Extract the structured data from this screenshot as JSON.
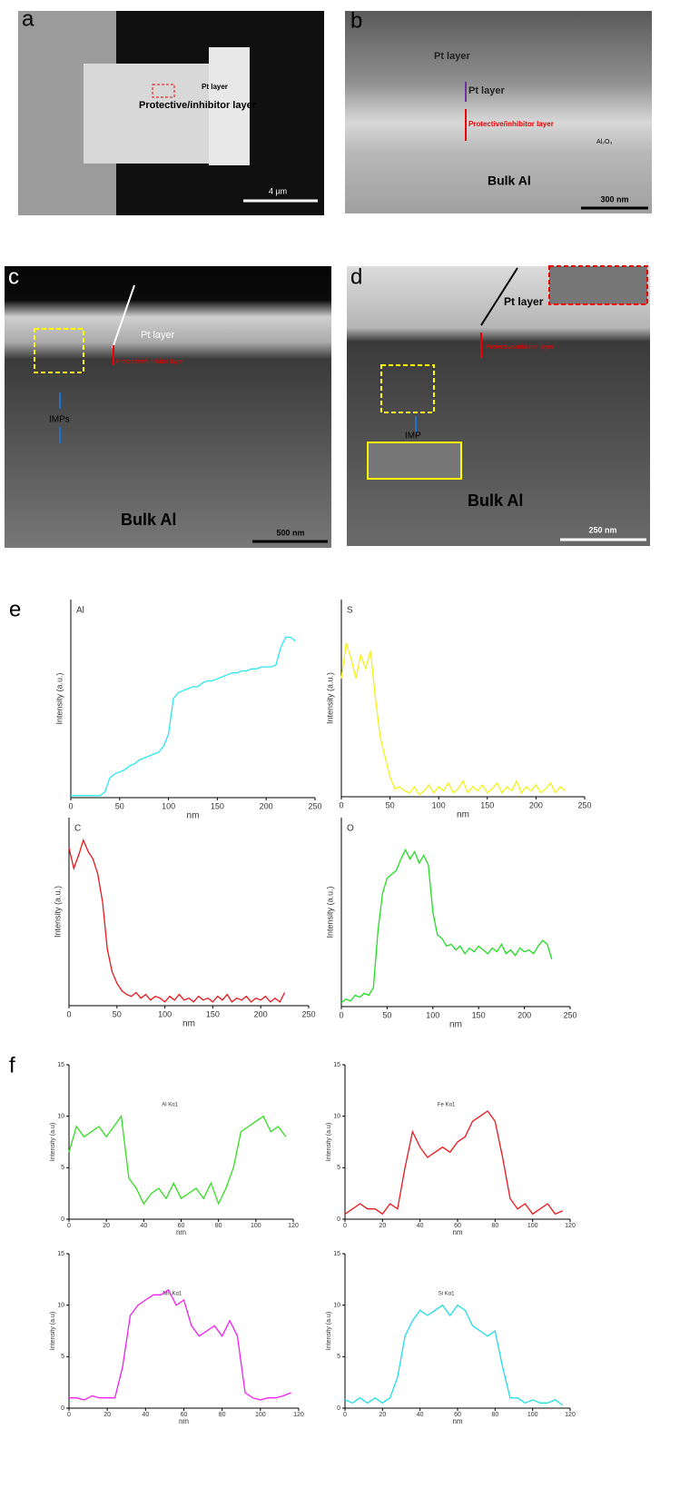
{
  "panels": [
    {
      "label": "a",
      "texts": [
        "Pt layer",
        "Protective/inhibitor layer",
        "4 µm"
      ]
    },
    {
      "label": "b",
      "texts": [
        "Pt layer",
        "Pt layer",
        "Protective/inhibitor layer",
        "Al₂O₃",
        "Bulk Al",
        "300 nm"
      ]
    },
    {
      "label": "c",
      "texts": [
        "Pt layer",
        "Protective/inhibitor layer",
        "IMPs",
        "Bulk Al",
        "500 nm"
      ]
    },
    {
      "label": "d",
      "texts": [
        "Pt layer",
        "Protective/inhibitor layer",
        "IMP",
        "Bulk Al",
        "250 nm"
      ]
    }
  ],
  "figure_labels": [
    "e",
    "f"
  ],
  "chart_data": [
    {
      "type": "line",
      "title": "Al",
      "xlabel": "nm",
      "ylabel": "Intensity (a.u.)",
      "color": "#2ee6f0",
      "x": [
        0,
        5,
        10,
        15,
        20,
        25,
        30,
        35,
        40,
        45,
        50,
        55,
        60,
        65,
        70,
        75,
        80,
        85,
        90,
        95,
        100,
        105,
        110,
        115,
        120,
        125,
        130,
        135,
        140,
        145,
        150,
        155,
        160,
        165,
        170,
        175,
        180,
        185,
        190,
        195,
        200,
        205,
        210,
        215,
        220,
        225,
        230
      ],
      "values": [
        0.01,
        0.01,
        0.01,
        0.01,
        0.01,
        0.01,
        0.01,
        0.03,
        0.1,
        0.12,
        0.13,
        0.14,
        0.16,
        0.17,
        0.19,
        0.2,
        0.21,
        0.22,
        0.23,
        0.26,
        0.32,
        0.5,
        0.53,
        0.54,
        0.55,
        0.56,
        0.56,
        0.58,
        0.59,
        0.59,
        0.6,
        0.61,
        0.62,
        0.63,
        0.63,
        0.64,
        0.64,
        0.65,
        0.65,
        0.66,
        0.66,
        0.66,
        0.67,
        0.76,
        0.81,
        0.81,
        0.79
      ],
      "xlim": [
        0,
        250
      ],
      "ylim": [
        0,
        1
      ],
      "xticks": [
        0,
        50,
        100,
        150,
        200,
        250
      ]
    },
    {
      "type": "line",
      "title": "S",
      "xlabel": "nm",
      "ylabel": "Intensity (a.u.)",
      "color": "#f2f21a",
      "x": [
        0,
        5,
        10,
        15,
        20,
        25,
        30,
        35,
        40,
        45,
        50,
        55,
        60,
        65,
        70,
        75,
        80,
        85,
        90,
        95,
        100,
        105,
        110,
        115,
        120,
        125,
        130,
        135,
        140,
        145,
        150,
        155,
        160,
        165,
        170,
        175,
        180,
        185,
        190,
        195,
        200,
        205,
        210,
        215,
        220,
        225,
        230
      ],
      "values": [
        0.6,
        0.78,
        0.7,
        0.6,
        0.72,
        0.65,
        0.74,
        0.5,
        0.3,
        0.2,
        0.1,
        0.04,
        0.05,
        0.03,
        0.02,
        0.05,
        0.01,
        0.03,
        0.06,
        0.02,
        0.05,
        0.03,
        0.07,
        0.02,
        0.04,
        0.08,
        0.02,
        0.05,
        0.03,
        0.06,
        0.02,
        0.04,
        0.07,
        0.02,
        0.05,
        0.03,
        0.08,
        0.02,
        0.05,
        0.03,
        0.06,
        0.02,
        0.04,
        0.07,
        0.02,
        0.05,
        0.03
      ],
      "xlim": [
        0,
        250
      ],
      "ylim": [
        0,
        1
      ],
      "xticks": [
        0,
        50,
        100,
        150,
        200,
        250
      ]
    },
    {
      "type": "line",
      "title": "C",
      "xlabel": "nm",
      "ylabel": "Intensity (a.u.)",
      "color": "#e8171c",
      "x": [
        0,
        5,
        10,
        15,
        20,
        25,
        30,
        35,
        40,
        45,
        50,
        55,
        60,
        65,
        70,
        75,
        80,
        85,
        90,
        95,
        100,
        105,
        110,
        115,
        120,
        125,
        130,
        135,
        140,
        145,
        150,
        155,
        160,
        165,
        170,
        175,
        180,
        185,
        190,
        195,
        200,
        205,
        210,
        215,
        220,
        225
      ],
      "values": [
        0.84,
        0.73,
        0.8,
        0.88,
        0.82,
        0.78,
        0.7,
        0.55,
        0.3,
        0.18,
        0.12,
        0.08,
        0.06,
        0.05,
        0.07,
        0.04,
        0.06,
        0.03,
        0.05,
        0.04,
        0.02,
        0.05,
        0.03,
        0.06,
        0.03,
        0.04,
        0.02,
        0.05,
        0.03,
        0.04,
        0.02,
        0.05,
        0.03,
        0.06,
        0.02,
        0.04,
        0.03,
        0.05,
        0.02,
        0.04,
        0.03,
        0.05,
        0.02,
        0.04,
        0.02,
        0.07
      ],
      "xlim": [
        0,
        250
      ],
      "ylim": [
        0,
        1
      ],
      "xticks": [
        0,
        50,
        100,
        150,
        200,
        250
      ]
    },
    {
      "type": "line",
      "title": "O",
      "xlabel": "nm",
      "ylabel": "Intensity (a.u.)",
      "color": "#22dd22",
      "x": [
        0,
        5,
        10,
        15,
        20,
        25,
        30,
        35,
        40,
        45,
        50,
        55,
        60,
        65,
        70,
        75,
        80,
        85,
        90,
        95,
        100,
        105,
        110,
        115,
        120,
        125,
        130,
        135,
        140,
        145,
        150,
        155,
        160,
        165,
        170,
        175,
        180,
        185,
        190,
        195,
        200,
        205,
        210,
        215,
        220,
        225,
        230
      ],
      "values": [
        0.02,
        0.04,
        0.03,
        0.06,
        0.05,
        0.07,
        0.06,
        0.1,
        0.4,
        0.6,
        0.68,
        0.7,
        0.72,
        0.78,
        0.83,
        0.78,
        0.82,
        0.76,
        0.8,
        0.75,
        0.5,
        0.38,
        0.36,
        0.32,
        0.33,
        0.3,
        0.32,
        0.28,
        0.31,
        0.29,
        0.32,
        0.3,
        0.28,
        0.31,
        0.29,
        0.33,
        0.28,
        0.3,
        0.27,
        0.31,
        0.29,
        0.3,
        0.28,
        0.32,
        0.35,
        0.33,
        0.25
      ],
      "xlim": [
        0,
        250
      ],
      "ylim": [
        0,
        1
      ],
      "xticks": [
        0,
        50,
        100,
        150,
        200,
        250
      ]
    },
    {
      "type": "line",
      "title": "Al Kα1",
      "xlabel": "nm",
      "ylabel": "Intensity (a.u)",
      "color": "#33dd22",
      "x": [
        0,
        4,
        8,
        12,
        16,
        20,
        24,
        28,
        32,
        36,
        40,
        44,
        48,
        52,
        56,
        60,
        64,
        68,
        72,
        76,
        80,
        84,
        88,
        92,
        96,
        100,
        104,
        108,
        112,
        116
      ],
      "values": [
        6.5,
        9,
        8,
        8.5,
        9,
        8,
        9,
        10,
        4,
        3,
        1.5,
        2.5,
        3,
        2,
        3.5,
        2,
        2.5,
        3,
        2,
        3.5,
        1.5,
        3,
        5,
        8.5,
        9,
        9.5,
        10,
        8.5,
        9,
        8
      ],
      "xlim": [
        0,
        120
      ],
      "ylim": [
        0,
        15
      ],
      "xticks": [
        0,
        20,
        40,
        60,
        80,
        100,
        120
      ],
      "yticks": [
        0,
        5,
        10,
        15
      ]
    },
    {
      "type": "line",
      "title": "Fe Kα1",
      "xlabel": "nm",
      "ylabel": "Intensity (a.u)",
      "color": "#e8171c",
      "x": [
        0,
        4,
        8,
        12,
        16,
        20,
        24,
        28,
        32,
        36,
        40,
        44,
        48,
        52,
        56,
        60,
        64,
        68,
        72,
        76,
        80,
        84,
        88,
        92,
        96,
        100,
        104,
        108,
        112,
        116
      ],
      "values": [
        0.5,
        1,
        1.5,
        1,
        1,
        0.5,
        1.5,
        1,
        5,
        8.5,
        7,
        6,
        6.5,
        7,
        6.5,
        7.5,
        8,
        9.5,
        10,
        10.5,
        9.5,
        6,
        2,
        1,
        1.5,
        0.5,
        1,
        1.5,
        0.5,
        0.8
      ],
      "xlim": [
        0,
        120
      ],
      "ylim": [
        0,
        15
      ],
      "xticks": [
        0,
        20,
        40,
        60,
        80,
        100,
        120
      ],
      "yticks": [
        0,
        5,
        10,
        15
      ]
    },
    {
      "type": "line",
      "title": "Mn Kα1",
      "xlabel": "nm",
      "ylabel": "Intensity (a.u)",
      "color": "#ee22ee",
      "x": [
        0,
        4,
        8,
        12,
        16,
        20,
        24,
        28,
        32,
        36,
        40,
        44,
        48,
        52,
        56,
        60,
        64,
        68,
        72,
        76,
        80,
        84,
        88,
        92,
        96,
        100,
        104,
        108,
        112,
        116
      ],
      "values": [
        1,
        1,
        0.8,
        1.2,
        1,
        1,
        1,
        4,
        9,
        10,
        10.5,
        11,
        11,
        11.5,
        10,
        10.5,
        8,
        7,
        7.5,
        8,
        7,
        8.5,
        7,
        1.5,
        1,
        0.8,
        1,
        1,
        1.2,
        1.5
      ],
      "xlim": [
        0,
        120
      ],
      "ylim": [
        0,
        15
      ],
      "xticks": [
        0,
        20,
        40,
        60,
        80,
        100,
        120
      ],
      "yticks": [
        0,
        5,
        10,
        15
      ]
    },
    {
      "type": "line",
      "title": "Si Kα1",
      "xlabel": "nm",
      "ylabel": "Intensity (a.u)",
      "color": "#22dde8",
      "x": [
        0,
        4,
        8,
        12,
        16,
        20,
        24,
        28,
        32,
        36,
        40,
        44,
        48,
        52,
        56,
        60,
        64,
        68,
        72,
        76,
        80,
        84,
        88,
        92,
        96,
        100,
        104,
        108,
        112,
        116
      ],
      "values": [
        0.8,
        0.5,
        1,
        0.5,
        1,
        0.5,
        1,
        3,
        7,
        8.5,
        9.5,
        9,
        9.5,
        10,
        9,
        10,
        9.5,
        8,
        7.5,
        7,
        7.5,
        4,
        1,
        1,
        0.5,
        0.8,
        0.5,
        0.5,
        0.8,
        0.3
      ],
      "xlim": [
        0,
        120
      ],
      "ylim": [
        0,
        15
      ],
      "xticks": [
        0,
        20,
        40,
        60,
        80,
        100,
        120
      ],
      "yticks": [
        0,
        5,
        10,
        15
      ]
    }
  ]
}
